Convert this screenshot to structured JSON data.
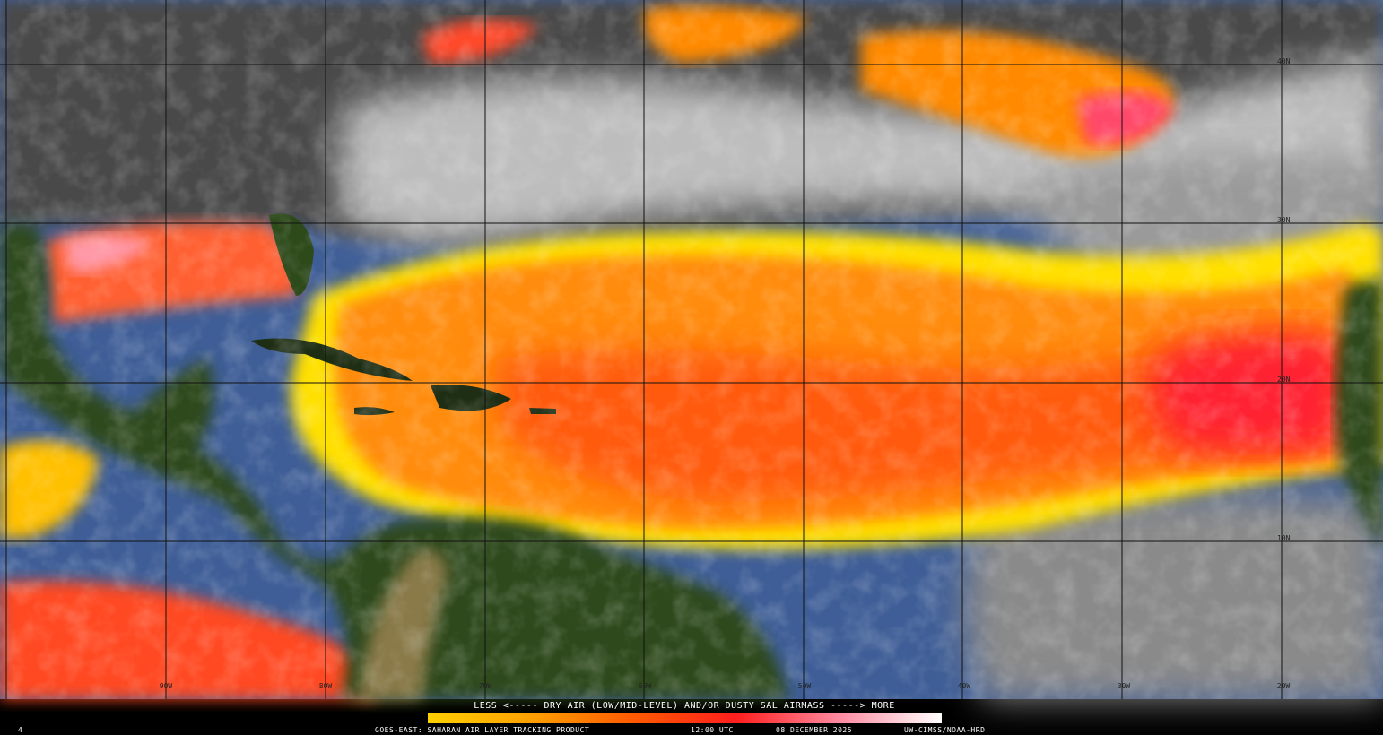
{
  "map": {
    "lat_labels": [
      "40N",
      "30N",
      "20N",
      "10N"
    ],
    "lon_labels": [
      "90W",
      "80W",
      "70W",
      "60W",
      "50W",
      "40W",
      "30W",
      "20W"
    ]
  },
  "legend": {
    "caption": "LESS <----- DRY AIR (LOW/MID-LEVEL) AND/OR DUSTY SAL AIRMASS -----> MORE"
  },
  "footer": {
    "frame": "4",
    "product": "GOES-EAST: SAHARAN AIR LAYER TRACKING PRODUCT",
    "time": "12:00 UTC",
    "date": "08 DECEMBER 2025",
    "credit": "UW-CIMSS/NOAA-HRD"
  }
}
